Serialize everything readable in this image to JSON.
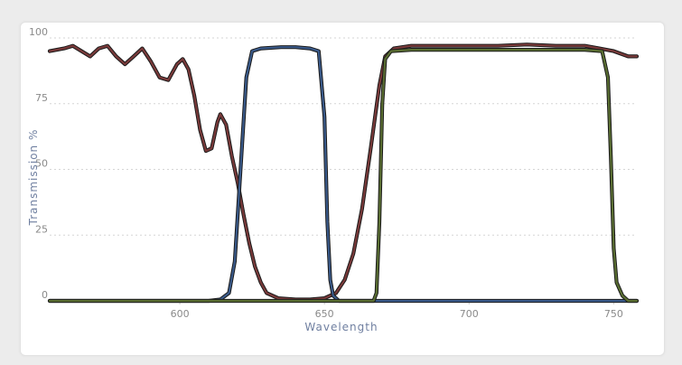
{
  "chart_data": {
    "type": "line",
    "title": "",
    "xlabel": "Wavelength",
    "ylabel": "Transmission %",
    "xlim": [
      555,
      758
    ],
    "ylim": [
      0,
      100
    ],
    "xticks": [
      600,
      650,
      700,
      750
    ],
    "yticks": [
      0,
      25,
      50,
      75,
      100
    ],
    "grid": "horizontal-dashed",
    "series": [
      {
        "color": "#7a3a3a",
        "points": [
          [
            555,
            95
          ],
          [
            560,
            96
          ],
          [
            563,
            97
          ],
          [
            566,
            95
          ],
          [
            569,
            93
          ],
          [
            572,
            96
          ],
          [
            575,
            97
          ],
          [
            578,
            93
          ],
          [
            581,
            90
          ],
          [
            584,
            93
          ],
          [
            587,
            96
          ],
          [
            590,
            91
          ],
          [
            593,
            85
          ],
          [
            596,
            84
          ],
          [
            599,
            90
          ],
          [
            601,
            92
          ],
          [
            603,
            88
          ],
          [
            605,
            78
          ],
          [
            607,
            65
          ],
          [
            609,
            57
          ],
          [
            611,
            58
          ],
          [
            613,
            68
          ],
          [
            614,
            71
          ],
          [
            616,
            67
          ],
          [
            618,
            55
          ],
          [
            620,
            45
          ],
          [
            622,
            33
          ],
          [
            624,
            22
          ],
          [
            626,
            13
          ],
          [
            628,
            7
          ],
          [
            630,
            3
          ],
          [
            634,
            1
          ],
          [
            640,
            0.5
          ],
          [
            645,
            0.5
          ],
          [
            650,
            1
          ],
          [
            654,
            3
          ],
          [
            657,
            8
          ],
          [
            660,
            18
          ],
          [
            663,
            35
          ],
          [
            666,
            58
          ],
          [
            669,
            82
          ],
          [
            671,
            93
          ],
          [
            674,
            96
          ],
          [
            680,
            97
          ],
          [
            690,
            97
          ],
          [
            700,
            97
          ],
          [
            710,
            97
          ],
          [
            720,
            97.5
          ],
          [
            730,
            97
          ],
          [
            740,
            97
          ],
          [
            745,
            96
          ],
          [
            750,
            95
          ],
          [
            755,
            93
          ],
          [
            758,
            93
          ]
        ]
      },
      {
        "color": "#3a5a8a",
        "points": [
          [
            555,
            0
          ],
          [
            610,
            0
          ],
          [
            614,
            0.5
          ],
          [
            617,
            3
          ],
          [
            619,
            15
          ],
          [
            621,
            50
          ],
          [
            623,
            85
          ],
          [
            625,
            95
          ],
          [
            628,
            96
          ],
          [
            635,
            96.5
          ],
          [
            640,
            96.5
          ],
          [
            645,
            96
          ],
          [
            648,
            95
          ],
          [
            650,
            70
          ],
          [
            651,
            30
          ],
          [
            652,
            8
          ],
          [
            653,
            2
          ],
          [
            655,
            0
          ],
          [
            670,
            0
          ],
          [
            758,
            0
          ]
        ]
      },
      {
        "color": "#5a6e32",
        "points": [
          [
            555,
            0
          ],
          [
            665,
            0
          ],
          [
            667,
            0
          ],
          [
            668,
            3
          ],
          [
            669,
            30
          ],
          [
            670,
            75
          ],
          [
            671,
            92
          ],
          [
            673,
            95
          ],
          [
            680,
            95.5
          ],
          [
            690,
            95.5
          ],
          [
            700,
            95.5
          ],
          [
            710,
            95.5
          ],
          [
            720,
            95.5
          ],
          [
            730,
            95.5
          ],
          [
            740,
            95.5
          ],
          [
            746,
            95
          ],
          [
            748,
            85
          ],
          [
            749,
            55
          ],
          [
            750,
            20
          ],
          [
            751,
            7
          ],
          [
            753,
            2
          ],
          [
            755,
            0
          ],
          [
            758,
            0
          ]
        ]
      }
    ]
  }
}
